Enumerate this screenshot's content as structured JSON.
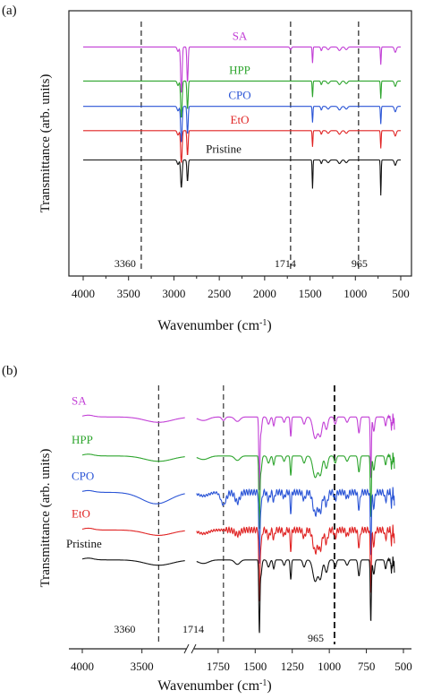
{
  "chart_data": [
    {
      "panel_label": "(a)",
      "type": "line",
      "xlabel": "Wavenumber (cm",
      "xlabel_sup": "-1",
      "xlabel_close": ")",
      "ylabel": "Transmittance (arb. units)",
      "xlim": [
        4000,
        450
      ],
      "x_ticks": [
        4000,
        3500,
        3000,
        2500,
        2000,
        1500,
        1000,
        500
      ],
      "x_tick_labels": [
        "4000",
        "3500",
        "3000",
        "2500",
        "2000",
        "1500",
        "1000",
        "500"
      ],
      "reference_lines": [
        {
          "x": 3360,
          "label": "3360"
        },
        {
          "x": 1714,
          "label": "1714"
        },
        {
          "x": 965,
          "label": "965"
        }
      ],
      "series": [
        {
          "name": "SA",
          "color": "#c23fd6",
          "baseline": 0.883
        },
        {
          "name": "HPP",
          "color": "#2ea52e",
          "baseline": 0.737
        },
        {
          "name": "CPO",
          "color": "#2b55d6",
          "baseline": 0.628
        },
        {
          "name": "EtO",
          "color": "#e02424",
          "baseline": 0.524
        },
        {
          "name": "Pristine",
          "color": "#111111",
          "baseline": 0.398
        }
      ]
    },
    {
      "panel_label": "(b)",
      "type": "line",
      "xlabel": "Wavenumber (cm",
      "xlabel_sup": "-1",
      "xlabel_close": ")",
      "ylabel": "Transmittance (arb. units)",
      "axis_break_between": [
        3100,
        1900
      ],
      "x_ticks": [
        4000,
        3500,
        1750,
        1500,
        1250,
        1000,
        750,
        500
      ],
      "x_tick_labels": [
        "4000",
        "3500",
        "1750",
        "1500",
        "1250",
        "1000",
        "750",
        "500"
      ],
      "reference_lines": [
        {
          "x": 3360,
          "label": "3360",
          "style": "dashed"
        },
        {
          "x": 1714,
          "label": "1714",
          "style": "dashed"
        },
        {
          "x": 965,
          "label": "965",
          "style": "dashed-bold"
        }
      ],
      "series": [
        {
          "name": "SA",
          "color": "#c23fd6",
          "baseline": 0.875
        },
        {
          "name": "HPP",
          "color": "#2ea52e",
          "baseline": 0.725
        },
        {
          "name": "CPO",
          "color": "#2b55d6",
          "baseline": 0.585
        },
        {
          "name": "EtO",
          "color": "#e02424",
          "baseline": 0.44
        },
        {
          "name": "Pristine",
          "color": "#111111",
          "baseline": 0.325
        }
      ]
    }
  ]
}
